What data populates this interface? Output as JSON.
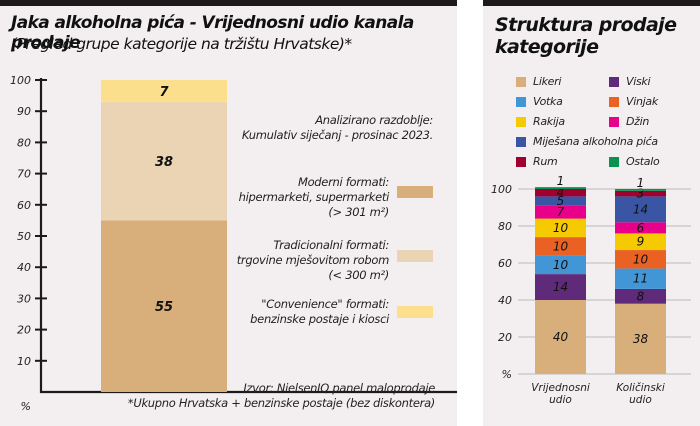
{
  "left": {
    "title": "Jaka alkoholna pića - Vrijednosni udio kanala prodaje",
    "subtitle": "(Pregled grupe kategorije na tržištu Hrvatske)*",
    "period_lines": [
      "Analizirano razdoblje:",
      "Kumulativ siječanj - prosinac 2023."
    ],
    "legend": [
      {
        "lines": [
          "Moderni formati:",
          "hipermarketi, supermarketi",
          "(> 301 m²)"
        ],
        "color": "#d8af7a"
      },
      {
        "lines": [
          "Tradicionalni formati:",
          "trgovine mješovitom robom",
          "(< 300 m²)"
        ],
        "color": "#ebd4b4"
      },
      {
        "lines": [
          "\"Convenience\" formati:",
          "benzinske postaje i kiosci"
        ],
        "color": "#fbdf8c"
      }
    ],
    "source_lines": [
      "Izvor: NielsenIQ panel maloprodaje",
      "*Ukupno Hrvatska + benzinske postaje (bez diskontera)"
    ]
  },
  "right": {
    "title_lines": [
      "Struktura prodaje",
      "kategorije"
    ],
    "legend": [
      {
        "name": "Likeri",
        "color": "#d8af7a"
      },
      {
        "name": "Viski",
        "color": "#5e2a79"
      },
      {
        "name": "Votka",
        "color": "#4296d6"
      },
      {
        "name": "Vinjak",
        "color": "#ea6223"
      },
      {
        "name": "Rakija",
        "color": "#f6ca00"
      },
      {
        "name": "Džin",
        "color": "#e8008a"
      },
      {
        "name": "Miješana alkoholna pića",
        "color": "#3a55a4"
      },
      {
        "name": "Rum",
        "color": "#a0002f"
      },
      {
        "name": "Ostalo",
        "color": "#0a9350"
      }
    ]
  },
  "chart_data": [
    {
      "type": "bar",
      "stacked": true,
      "title": "Jaka alkoholna pića - Vrijednosni udio kanala prodaje",
      "subtitle": "(Pregled grupe kategorije na tržištu Hrvatske)*",
      "ylabel": "%",
      "ylim": [
        0,
        100
      ],
      "yticks": [
        10,
        20,
        30,
        40,
        50,
        60,
        70,
        80,
        90,
        100
      ],
      "zero_label": "%",
      "grid": false,
      "categories": [
        ""
      ],
      "series": [
        {
          "name": "Moderni formati: hipermarketi, supermarketi (> 301 m²)",
          "values": [
            55
          ],
          "color": "#d8af7a"
        },
        {
          "name": "Tradicionalni formati: trgovine mješovitom robom (< 300 m²)",
          "values": [
            38
          ],
          "color": "#ebd4b4"
        },
        {
          "name": "\"Convenience\" formati: benzinske postaje i kiosci",
          "values": [
            7
          ],
          "color": "#fbdf8c"
        }
      ],
      "legend_position": "right"
    },
    {
      "type": "bar",
      "stacked": true,
      "title": "Struktura prodaje kategorije",
      "ylabel": "%",
      "ylim": [
        0,
        100
      ],
      "yticks": [
        20,
        40,
        60,
        80,
        100
      ],
      "zero_label": "%",
      "grid": true,
      "categories": [
        "Vrijednosni udio",
        "Količinski udio"
      ],
      "series": [
        {
          "name": "Likeri",
          "values": [
            40,
            38
          ],
          "color": "#d8af7a"
        },
        {
          "name": "Viski",
          "values": [
            14,
            8
          ],
          "color": "#5e2a79"
        },
        {
          "name": "Votka",
          "values": [
            10,
            11
          ],
          "color": "#4296d6"
        },
        {
          "name": "Vinjak",
          "values": [
            10,
            10
          ],
          "color": "#ea6223"
        },
        {
          "name": "Rakija",
          "values": [
            10,
            9
          ],
          "color": "#f6ca00"
        },
        {
          "name": "Džin",
          "values": [
            7,
            6
          ],
          "color": "#e8008a"
        },
        {
          "name": "Miješana alkoholna pića",
          "values": [
            5,
            14
          ],
          "color": "#3a55a4"
        },
        {
          "name": "Rum",
          "values": [
            4,
            3
          ],
          "color": "#a0002f"
        },
        {
          "name": "Ostalo",
          "values": [
            1,
            1
          ],
          "color": "#0a9350"
        }
      ],
      "legend_position": "top"
    }
  ]
}
